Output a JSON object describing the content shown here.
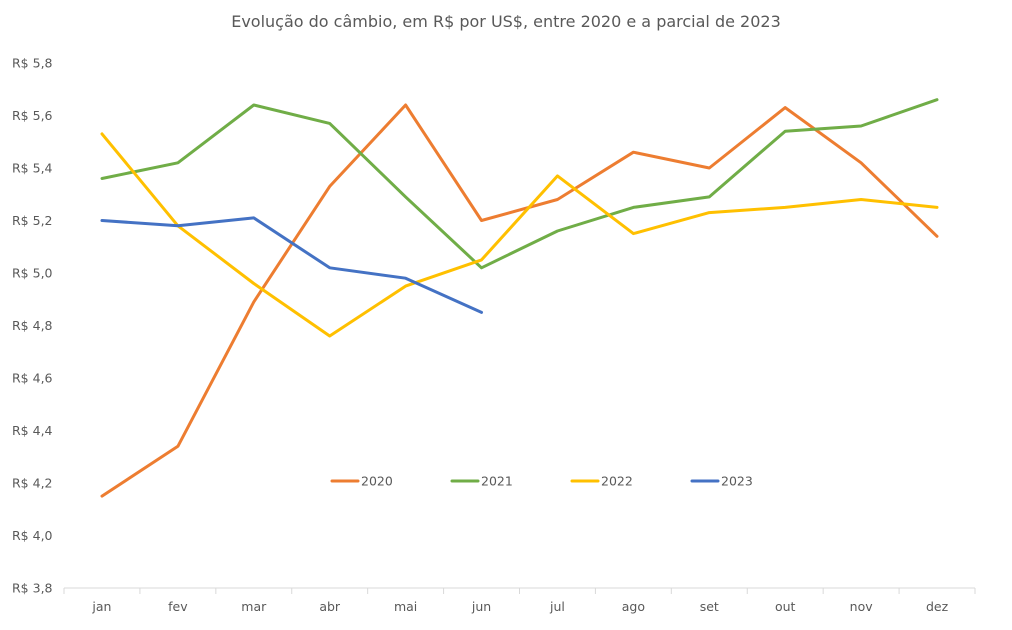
{
  "chart_data": {
    "type": "line",
    "title": "Evolução do câmbio, em R$ por US$, entre 2020 e a parcial de 2023",
    "xlabel": "",
    "ylabel": "",
    "categories": [
      "jan",
      "fev",
      "mar",
      "abr",
      "mai",
      "jun",
      "jul",
      "ago",
      "set",
      "out",
      "nov",
      "dez"
    ],
    "ylim": [
      3.8,
      5.8
    ],
    "ystep": 0.2,
    "ytick_labels": [
      "R$ 3,8",
      "R$ 4,0",
      "R$ 4,2",
      "R$ 4,4",
      "R$ 4,6",
      "R$ 4,8",
      "R$ 5,0",
      "R$ 5,2",
      "R$ 5,4",
      "R$ 5,6",
      "R$ 5,8"
    ],
    "grid": false,
    "legend_position": "center-bottom",
    "series": [
      {
        "name": "2020",
        "color": "#ED7D31",
        "values": [
          4.15,
          4.34,
          4.89,
          5.33,
          5.64,
          5.2,
          5.28,
          5.46,
          5.4,
          5.63,
          5.42,
          5.14
        ]
      },
      {
        "name": "2021",
        "color": "#70AD47",
        "values": [
          5.36,
          5.42,
          5.64,
          5.57,
          5.29,
          5.02,
          5.16,
          5.25,
          5.29,
          5.54,
          5.56,
          5.66
        ]
      },
      {
        "name": "2022",
        "color": "#FFC000",
        "values": [
          5.53,
          5.18,
          4.96,
          4.76,
          4.95,
          5.05,
          5.37,
          5.15,
          5.23,
          5.25,
          5.28,
          5.25
        ]
      },
      {
        "name": "2023",
        "color": "#4472C4",
        "values": [
          5.2,
          5.18,
          5.21,
          5.02,
          4.98,
          4.85,
          null,
          null,
          null,
          null,
          null,
          null
        ]
      }
    ]
  }
}
